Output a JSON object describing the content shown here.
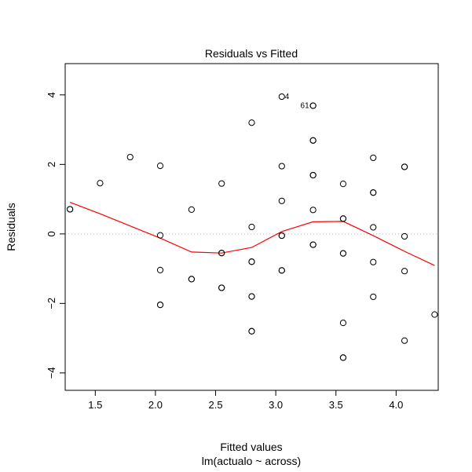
{
  "chart_data": {
    "type": "scatter",
    "title": "Residuals vs Fitted",
    "xlabel": "Fitted values",
    "subtitle": "lm(actualo ~ across)",
    "ylabel": "Residuals",
    "xlim": [
      1.25,
      4.35
    ],
    "ylim": [
      -4.5,
      4.9
    ],
    "xticks": [
      1.5,
      2.0,
      2.5,
      3.0,
      3.5,
      4.0
    ],
    "xtick_labels": [
      "1.5",
      "2.0",
      "2.5",
      "3.0",
      "3.5",
      "4.0"
    ],
    "yticks": [
      -4,
      -2,
      0,
      2,
      4
    ],
    "ytick_labels": [
      "−4",
      "−2",
      "0",
      "2",
      "4"
    ],
    "grid": false,
    "reference_line": {
      "y": 0,
      "style": "dotted",
      "color": "#bbbbbb"
    },
    "point_color": "#000000",
    "smooth_color": "#ff0000",
    "points": [
      {
        "x": 1.29,
        "y": 0.71
      },
      {
        "x": 1.29,
        "y": 0.71
      },
      {
        "x": 1.54,
        "y": 1.46
      },
      {
        "x": 1.79,
        "y": 2.21
      },
      {
        "x": 2.04,
        "y": 1.96
      },
      {
        "x": 2.04,
        "y": -0.04
      },
      {
        "x": 2.04,
        "y": -1.04
      },
      {
        "x": 2.04,
        "y": -2.04
      },
      {
        "x": 2.04,
        "y": -2.04
      },
      {
        "x": 2.3,
        "y": 0.7
      },
      {
        "x": 2.3,
        "y": -1.3
      },
      {
        "x": 2.3,
        "y": -1.3
      },
      {
        "x": 2.55,
        "y": 1.45
      },
      {
        "x": 2.55,
        "y": -0.55
      },
      {
        "x": 2.55,
        "y": -0.55
      },
      {
        "x": 2.55,
        "y": -1.55
      },
      {
        "x": 2.55,
        "y": -1.55
      },
      {
        "x": 2.8,
        "y": 3.2
      },
      {
        "x": 2.8,
        "y": 0.2
      },
      {
        "x": 2.8,
        "y": -0.8
      },
      {
        "x": 2.8,
        "y": -0.8
      },
      {
        "x": 2.8,
        "y": -1.8
      },
      {
        "x": 2.8,
        "y": -1.8
      },
      {
        "x": 2.8,
        "y": -2.8
      },
      {
        "x": 2.8,
        "y": -2.8
      },
      {
        "x": 3.05,
        "y": 3.95
      },
      {
        "x": 3.05,
        "y": 1.95
      },
      {
        "x": 3.05,
        "y": 0.95
      },
      {
        "x": 3.05,
        "y": -0.05
      },
      {
        "x": 3.05,
        "y": -0.05
      },
      {
        "x": 3.05,
        "y": -1.05
      },
      {
        "x": 3.05,
        "y": -1.05
      },
      {
        "x": 3.31,
        "y": 3.69
      },
      {
        "x": 3.31,
        "y": 3.69
      },
      {
        "x": 3.31,
        "y": 2.69
      },
      {
        "x": 3.31,
        "y": 2.69
      },
      {
        "x": 3.31,
        "y": 1.69
      },
      {
        "x": 3.31,
        "y": 1.69
      },
      {
        "x": 3.31,
        "y": 0.69
      },
      {
        "x": 3.31,
        "y": -0.31
      },
      {
        "x": 3.31,
        "y": -0.31
      },
      {
        "x": 3.56,
        "y": 1.44
      },
      {
        "x": 3.56,
        "y": 0.44
      },
      {
        "x": 3.56,
        "y": 0.44
      },
      {
        "x": 3.56,
        "y": -0.56
      },
      {
        "x": 3.56,
        "y": -0.56
      },
      {
        "x": 3.56,
        "y": -2.56
      },
      {
        "x": 3.56,
        "y": -3.56
      },
      {
        "x": 3.56,
        "y": -3.56
      },
      {
        "x": 3.81,
        "y": 2.19
      },
      {
        "x": 3.81,
        "y": 1.19
      },
      {
        "x": 3.81,
        "y": 1.19
      },
      {
        "x": 3.81,
        "y": 0.19
      },
      {
        "x": 3.81,
        "y": -0.81
      },
      {
        "x": 3.81,
        "y": -1.81
      },
      {
        "x": 4.07,
        "y": 1.93
      },
      {
        "x": 4.07,
        "y": 1.93
      },
      {
        "x": 4.07,
        "y": -0.07
      },
      {
        "x": 4.07,
        "y": -1.07
      },
      {
        "x": 4.07,
        "y": -3.07
      },
      {
        "x": 4.32,
        "y": -2.32
      }
    ],
    "smooth_line": {
      "x": [
        1.29,
        1.54,
        1.79,
        2.04,
        2.3,
        2.55,
        2.8,
        3.05,
        3.31,
        3.56,
        3.81,
        4.07,
        4.32
      ],
      "y": [
        0.91,
        0.58,
        0.23,
        -0.12,
        -0.52,
        -0.55,
        -0.39,
        0.07,
        0.35,
        0.36,
        -0.05,
        -0.5,
        -0.91
      ]
    },
    "point_labels": [
      {
        "text": "4",
        "x": 3.05,
        "y": 3.95
      },
      {
        "text": "61",
        "x": 3.31,
        "y": 3.69
      }
    ]
  }
}
